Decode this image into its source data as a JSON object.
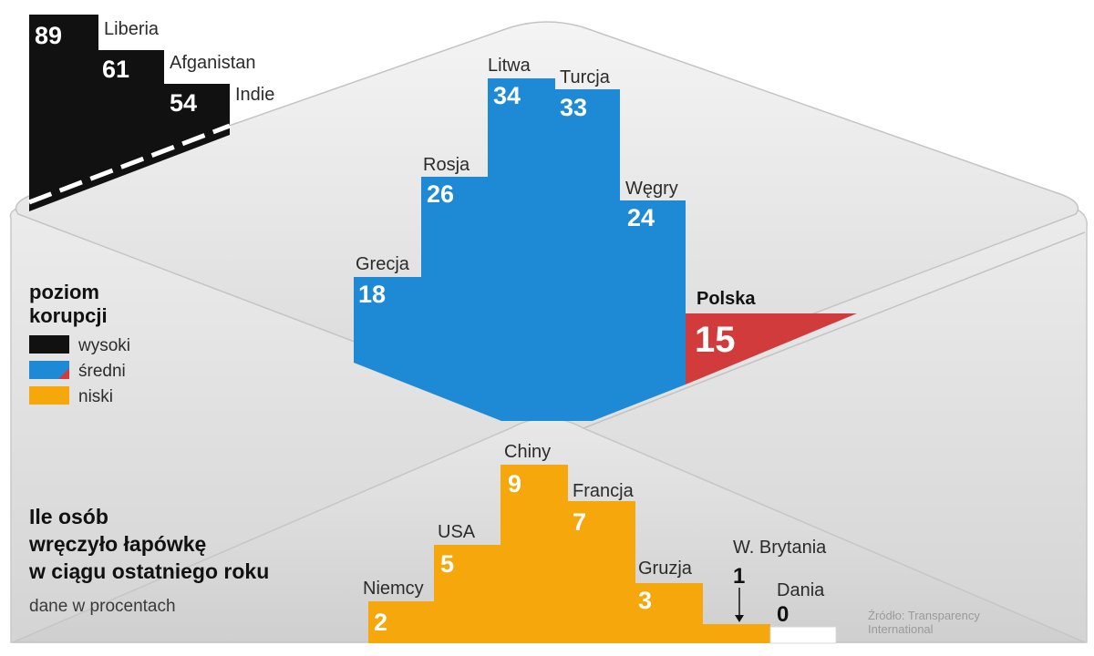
{
  "chart_data": {
    "type": "bar",
    "title": "Ile osób wręczyło łapówkę w ciągu ostatniego roku",
    "subtitle": "dane w procentach",
    "legend": {
      "title_lines": [
        "poziom",
        "korupcji"
      ],
      "items": [
        {
          "label": "wysoki",
          "color": "#111111"
        },
        {
          "label": "średni",
          "color": "#1e8ad6"
        },
        {
          "label": "niski",
          "color": "#f5a70b"
        }
      ]
    },
    "source_lines": [
      "Źródło: Transparency",
      "International"
    ],
    "groups": {
      "high": {
        "level": "wysoki",
        "color": "#111111",
        "categories": [
          "Liberia",
          "Afganistan",
          "Indie"
        ],
        "values": [
          89,
          61,
          54
        ]
      },
      "medium": {
        "level": "średni",
        "color": "#1e8ad6",
        "categories": [
          "Grecja",
          "Rosja",
          "Litwa",
          "Turcja",
          "Węgry"
        ],
        "values": [
          18,
          26,
          34,
          33,
          24
        ]
      },
      "highlight": {
        "level": "średni",
        "color": "#d23b3b",
        "categories": [
          "Polska"
        ],
        "values": [
          15
        ]
      },
      "low": {
        "level": "niski",
        "color": "#f5a70b",
        "categories": [
          "Niemcy",
          "USA",
          "Chiny",
          "Francja",
          "Gruzja",
          "W. Brytania",
          "Dania"
        ],
        "values": [
          2,
          5,
          9,
          7,
          3,
          1,
          0
        ]
      }
    }
  }
}
